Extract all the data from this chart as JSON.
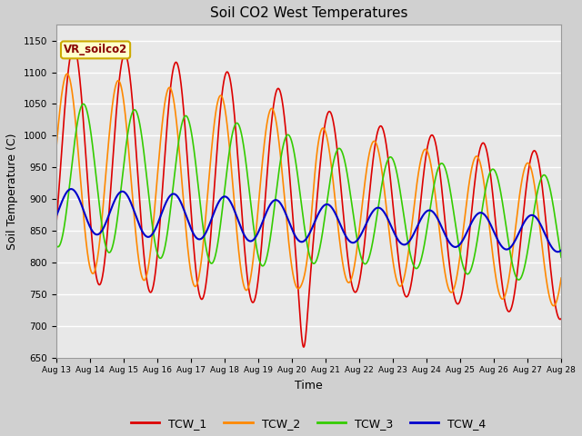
{
  "title": "Soil CO2 West Temperatures",
  "xlabel": "Time",
  "ylabel": "Soil Temperature (C)",
  "ylim": [
    650,
    1175
  ],
  "xlim": [
    0,
    15
  ],
  "fig_bg": "#d0d0d0",
  "plot_bg": "#e8e8e8",
  "annotation_text": "VR_soilco2",
  "annotation_bg": "#ffffcc",
  "annotation_border": "#ccaa00",
  "series": {
    "TCW_1": {
      "color": "#dd0000",
      "lw": 1.2
    },
    "TCW_2": {
      "color": "#ff8800",
      "lw": 1.2
    },
    "TCW_3": {
      "color": "#33cc00",
      "lw": 1.2
    },
    "TCW_4": {
      "color": "#0000cc",
      "lw": 1.5
    }
  },
  "xtick_labels": [
    "Aug 13",
    "Aug 14",
    "Aug 15",
    "Aug 16",
    "Aug 17",
    "Aug 18",
    "Aug 19",
    "Aug 20",
    "Aug 21",
    "Aug 22",
    "Aug 23",
    "Aug 24",
    "Aug 25",
    "Aug 26",
    "Aug 27",
    "Aug 28"
  ],
  "ytick_values": [
    650,
    700,
    750,
    800,
    850,
    900,
    950,
    1000,
    1050,
    1100,
    1150
  ],
  "legend_labels": [
    "TCW_1",
    "TCW_2",
    "TCW_3",
    "TCW_4"
  ],
  "legend_colors": [
    "#dd0000",
    "#ff8800",
    "#33cc00",
    "#0000cc"
  ]
}
